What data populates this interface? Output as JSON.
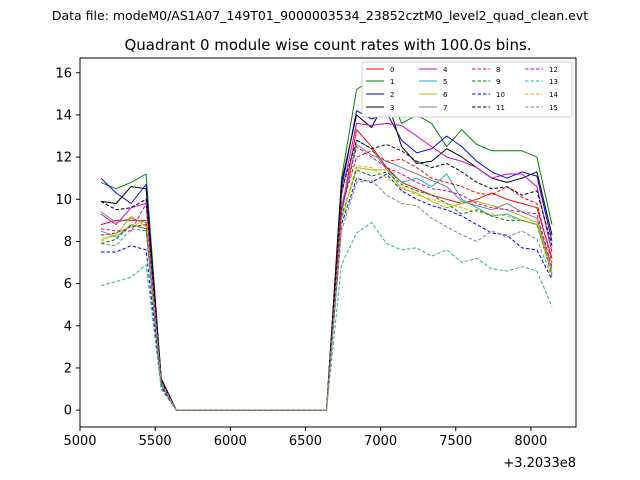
{
  "chart_data": {
    "type": "line",
    "suptitle": "Data file: modeM0/AS1A07_149T01_9000003534_23852cztM0_level2_quad_clean.evt",
    "title": "Quadrant 0 module wise count rates with 100.0s bins.",
    "xlabel": "",
    "ylabel": "",
    "x_offset_label": "+3.2033e8",
    "xlim": [
      5000,
      8300
    ],
    "ylim": [
      -0.8,
      16.7
    ],
    "x_ticks": [
      5000,
      5500,
      6000,
      6500,
      7000,
      7500,
      8000
    ],
    "y_ticks": [
      0,
      2,
      4,
      6,
      8,
      10,
      12,
      14,
      16
    ],
    "legend_position": "top-right",
    "x": [
      5140,
      5240,
      5340,
      5440,
      5540,
      5640,
      5740,
      5840,
      5940,
      6040,
      6140,
      6240,
      6340,
      6440,
      6540,
      6640,
      6740,
      6840,
      6940,
      7040,
      7140,
      7240,
      7340,
      7440,
      7540,
      7640,
      7740,
      7840,
      7940,
      8040,
      8140
    ],
    "series": [
      {
        "name": "0",
        "color": "#ff0000",
        "dash": "solid",
        "values": [
          8.8,
          9.0,
          9.0,
          9.0,
          1.2,
          0,
          0,
          0,
          0,
          0,
          0,
          0,
          0,
          0,
          0,
          0,
          9.5,
          13.3,
          12.5,
          11.5,
          10.8,
          10.5,
          10.2,
          10.0,
          9.8,
          10.0,
          10.3,
          10.0,
          9.8,
          9.6,
          7.2
        ]
      },
      {
        "name": "1",
        "color": "#008000",
        "dash": "solid",
        "values": [
          10.8,
          10.5,
          10.8,
          11.2,
          1.5,
          0,
          0,
          0,
          0,
          0,
          0,
          0,
          0,
          0,
          0,
          0,
          11.0,
          15.2,
          15.7,
          15.4,
          13.6,
          14.0,
          13.6,
          12.5,
          13.3,
          12.6,
          12.3,
          12.3,
          12.3,
          12.0,
          8.8
        ]
      },
      {
        "name": "2",
        "color": "#0000ff",
        "dash": "solid",
        "values": [
          11.0,
          10.3,
          9.8,
          10.7,
          1.5,
          0,
          0,
          0,
          0,
          0,
          0,
          0,
          0,
          0,
          0,
          0,
          10.5,
          14.2,
          13.8,
          14.1,
          12.8,
          12.2,
          12.4,
          13.0,
          12.5,
          11.8,
          11.3,
          11.0,
          11.3,
          11.1,
          8.0
        ]
      },
      {
        "name": "3",
        "color": "#000000",
        "dash": "solid",
        "values": [
          9.9,
          9.8,
          10.6,
          10.5,
          1.5,
          0,
          0,
          0,
          0,
          0,
          0,
          0,
          0,
          0,
          0,
          0,
          10.8,
          14.0,
          13.4,
          14.8,
          12.5,
          11.7,
          11.8,
          12.4,
          12.0,
          11.5,
          11.0,
          10.8,
          11.0,
          11.3,
          8.3
        ]
      },
      {
        "name": "4",
        "color": "#cc00cc",
        "dash": "solid",
        "values": [
          9.3,
          8.8,
          9.6,
          9.8,
          1.4,
          0,
          0,
          0,
          0,
          0,
          0,
          0,
          0,
          0,
          0,
          0,
          10.2,
          13.6,
          13.5,
          13.6,
          13.5,
          13.0,
          12.5,
          12.0,
          11.8,
          11.5,
          11.0,
          11.2,
          11.2,
          10.6,
          7.5
        ]
      },
      {
        "name": "5",
        "color": "#20b2aa",
        "dash": "solid",
        "values": [
          8.5,
          8.2,
          8.8,
          8.6,
          1.3,
          0,
          0,
          0,
          0,
          0,
          0,
          0,
          0,
          0,
          0,
          0,
          9.3,
          12.8,
          12.4,
          11.4,
          10.8,
          11.0,
          10.6,
          11.2,
          10.0,
          9.6,
          9.2,
          9.3,
          9.0,
          8.8,
          6.5
        ]
      },
      {
        "name": "6",
        "color": "#bbbb00",
        "dash": "solid",
        "values": [
          8.1,
          8.3,
          9.2,
          8.7,
          1.3,
          0,
          0,
          0,
          0,
          0,
          0,
          0,
          0,
          0,
          0,
          0,
          9.0,
          11.5,
          11.4,
          11.4,
          10.5,
          10.3,
          9.9,
          9.6,
          9.8,
          9.9,
          9.7,
          9.5,
          9.2,
          8.9,
          6.6
        ]
      },
      {
        "name": "7",
        "color": "#808080",
        "dash": "solid",
        "values": [
          9.4,
          8.9,
          9.1,
          8.9,
          1.3,
          0,
          0,
          0,
          0,
          0,
          0,
          0,
          0,
          0,
          0,
          0,
          9.7,
          12.6,
          12.1,
          11.8,
          11.5,
          11.2,
          10.9,
          10.6,
          9.9,
          9.7,
          9.5,
          9.8,
          9.4,
          9.1,
          6.7
        ]
      },
      {
        "name": "8",
        "color": "#ff0000",
        "dash": "dashed",
        "values": [
          8.3,
          8.4,
          8.7,
          8.8,
          1.2,
          0,
          0,
          0,
          0,
          0,
          0,
          0,
          0,
          0,
          0,
          0,
          9.6,
          12.0,
          12.3,
          11.8,
          11.9,
          11.5,
          11.0,
          10.8,
          10.6,
          10.3,
          10.2,
          10.6,
          10.1,
          9.8,
          7.0
        ]
      },
      {
        "name": "9",
        "color": "#008000",
        "dash": "dashed",
        "values": [
          7.9,
          8.1,
          8.8,
          8.6,
          1.2,
          0,
          0,
          0,
          0,
          0,
          0,
          0,
          0,
          0,
          0,
          0,
          9.2,
          11.4,
          11.1,
          11.3,
          10.7,
          10.4,
          10.2,
          9.8,
          9.3,
          9.5,
          9.2,
          9.0,
          9.0,
          8.8,
          6.4
        ]
      },
      {
        "name": "10",
        "color": "#0000ff",
        "dash": "dashed",
        "values": [
          7.5,
          7.5,
          7.8,
          7.6,
          1.1,
          0,
          0,
          0,
          0,
          0,
          0,
          0,
          0,
          0,
          0,
          0,
          8.8,
          11.0,
          10.8,
          11.2,
          10.4,
          10.0,
          9.7,
          9.5,
          9.2,
          8.8,
          8.4,
          8.3,
          7.7,
          7.6,
          6.2
        ]
      },
      {
        "name": "11",
        "color": "#000000",
        "dash": "dashed",
        "values": [
          9.9,
          9.5,
          9.6,
          10.0,
          1.4,
          0,
          0,
          0,
          0,
          0,
          0,
          0,
          0,
          0,
          0,
          0,
          10.4,
          12.8,
          12.4,
          12.6,
          12.3,
          11.8,
          11.5,
          11.7,
          11.3,
          10.8,
          10.5,
          10.6,
          10.2,
          10.4,
          7.8
        ]
      },
      {
        "name": "12",
        "color": "#cc00cc",
        "dash": "dashed",
        "values": [
          8.6,
          8.5,
          8.5,
          9.8,
          1.3,
          0,
          0,
          0,
          0,
          0,
          0,
          0,
          0,
          0,
          0,
          0,
          9.5,
          12.5,
          12.0,
          11.5,
          11.2,
          10.8,
          10.5,
          10.4,
          10.2,
          9.8,
          9.6,
          9.5,
          9.4,
          9.3,
          6.8
        ]
      },
      {
        "name": "13",
        "color": "#20b2aa",
        "dash": "dashed",
        "values": [
          5.9,
          6.1,
          6.3,
          6.9,
          1.0,
          0,
          0,
          0,
          0,
          0,
          0,
          0,
          0,
          0,
          0,
          0,
          6.9,
          8.4,
          8.9,
          7.9,
          7.6,
          7.7,
          7.3,
          7.6,
          7.0,
          7.2,
          6.7,
          6.6,
          6.8,
          6.6,
          4.9
        ]
      },
      {
        "name": "14",
        "color": "#bbbb00",
        "dash": "dashed",
        "values": [
          8.0,
          8.4,
          8.7,
          9.0,
          1.3,
          0,
          0,
          0,
          0,
          0,
          0,
          0,
          0,
          0,
          0,
          0,
          9.0,
          11.6,
          11.5,
          11.0,
          10.6,
          10.2,
          10.0,
          9.8,
          9.6,
          9.4,
          9.3,
          9.2,
          9.0,
          8.8,
          6.5
        ]
      },
      {
        "name": "15",
        "color": "#808080",
        "dash": "dashed",
        "values": [
          7.9,
          7.8,
          8.6,
          8.5,
          1.2,
          0,
          0,
          0,
          0,
          0,
          0,
          0,
          0,
          0,
          0,
          0,
          8.5,
          10.8,
          10.9,
          10.2,
          9.8,
          9.7,
          9.1,
          8.7,
          8.3,
          8.0,
          8.5,
          8.2,
          8.5,
          8.1,
          6.3
        ]
      }
    ]
  }
}
